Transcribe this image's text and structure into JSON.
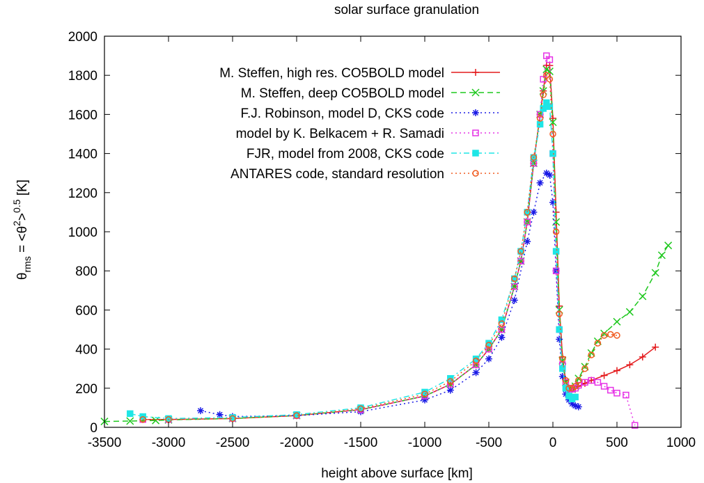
{
  "chart_data": {
    "type": "line",
    "title": "solar surface granulation",
    "xlabel": "height above surface [km]",
    "ylabel": {
      "prefix": "θ",
      "prefix_sub": "rms",
      "mid": " = <θ",
      "mid_sup": "2",
      "mid2": ">",
      "mid2_sup": "0.5",
      "suffix": " [K]"
    },
    "xlim": [
      -3500,
      1000
    ],
    "ylim": [
      0,
      2000
    ],
    "xticks": [
      "-3500",
      "-3000",
      "-2500",
      "-2000",
      "-1500",
      "-1000",
      "-500",
      "0",
      "500",
      "1000"
    ],
    "yticks": [
      "0",
      "200",
      "400",
      "600",
      "800",
      "1000",
      "1200",
      "1400",
      "1600",
      "1800",
      "2000"
    ],
    "grid": false,
    "legend_position": "top-right",
    "series": [
      {
        "name": "M. Steffen, high res. CO5BOLD model",
        "color": "#e41a1c",
        "dash": "solid",
        "marker": "plus",
        "x": [
          -3200,
          -3000,
          -2500,
          -2000,
          -1500,
          -1000,
          -800,
          -600,
          -500,
          -400,
          -300,
          -250,
          -200,
          -150,
          -100,
          -75,
          -50,
          -25,
          0,
          25,
          50,
          75,
          100,
          125,
          150,
          175,
          200,
          250,
          300,
          400,
          500,
          600,
          700,
          800
        ],
        "values": [
          40,
          40,
          45,
          60,
          90,
          160,
          220,
          320,
          400,
          500,
          720,
          850,
          1050,
          1350,
          1600,
          1720,
          1850,
          1850,
          1580,
          1100,
          620,
          360,
          240,
          200,
          195,
          200,
          210,
          225,
          240,
          265,
          290,
          320,
          360,
          410
        ]
      },
      {
        "name": "M. Steffen, deep CO5BOLD model",
        "color": "#1ec81e",
        "dash": "dashed",
        "marker": "cross",
        "x": [
          -3500,
          -3300,
          -3100,
          -3000,
          -2500,
          -2000,
          -1500,
          -1000,
          -800,
          -600,
          -500,
          -400,
          -300,
          -250,
          -200,
          -150,
          -100,
          -75,
          -50,
          -25,
          0,
          25,
          50,
          75,
          100,
          125,
          150,
          175,
          200,
          250,
          300,
          350,
          400,
          500,
          600,
          700,
          800,
          850,
          900
        ],
        "values": [
          30,
          32,
          35,
          38,
          45,
          60,
          90,
          160,
          220,
          320,
          400,
          500,
          720,
          850,
          1050,
          1350,
          1600,
          1720,
          1830,
          1820,
          1560,
          1050,
          600,
          340,
          230,
          200,
          195,
          210,
          250,
          310,
          380,
          440,
          480,
          540,
          590,
          670,
          790,
          880,
          930
        ]
      },
      {
        "name": "F.J. Robinson, model D, CKS code",
        "color": "#1a1ae6",
        "dash": "dotted",
        "marker": "star",
        "x": [
          -2750,
          -2600,
          -2500,
          -2000,
          -1500,
          -1000,
          -800,
          -600,
          -500,
          -400,
          -300,
          -200,
          -150,
          -100,
          -50,
          -25,
          0,
          25,
          50,
          75,
          100,
          125,
          150,
          175,
          200
        ],
        "values": [
          85,
          65,
          55,
          60,
          80,
          140,
          190,
          280,
          350,
          460,
          650,
          950,
          1100,
          1250,
          1300,
          1290,
          1150,
          800,
          450,
          260,
          170,
          140,
          120,
          110,
          105
        ]
      },
      {
        "name": "model by K. Belkacem + R. Samadi",
        "color": "#e633e6",
        "dash": "dotted",
        "marker": "square",
        "x": [
          -3200,
          -3000,
          -2500,
          -2000,
          -1500,
          -1000,
          -800,
          -600,
          -500,
          -400,
          -300,
          -250,
          -200,
          -150,
          -100,
          -75,
          -50,
          -25,
          0,
          25,
          50,
          75,
          100,
          125,
          150,
          175,
          200,
          250,
          300,
          350,
          400,
          450,
          500,
          570,
          640
        ],
        "values": [
          40,
          40,
          45,
          60,
          90,
          160,
          220,
          320,
          400,
          500,
          720,
          850,
          1050,
          1350,
          1600,
          1780,
          1900,
          1880,
          1400,
          800,
          500,
          320,
          230,
          200,
          195,
          200,
          215,
          230,
          240,
          230,
          210,
          190,
          175,
          165,
          10
        ]
      },
      {
        "name": "FJR, model from 2008, CKS code",
        "color": "#1ee6e6",
        "dash": "dashdot",
        "marker": "fsquare",
        "x": [
          -3300,
          -3200,
          -3000,
          -2500,
          -2000,
          -1500,
          -1000,
          -800,
          -600,
          -500,
          -400,
          -300,
          -250,
          -200,
          -150,
          -100,
          -75,
          -50,
          -25,
          0,
          25,
          50,
          75,
          100,
          125,
          150,
          175
        ],
        "values": [
          70,
          55,
          45,
          50,
          65,
          100,
          180,
          250,
          350,
          430,
          550,
          760,
          900,
          1100,
          1380,
          1550,
          1630,
          1660,
          1640,
          1400,
          900,
          500,
          300,
          200,
          160,
          145,
          155
        ]
      },
      {
        "name": "ANTARES code, standard resolution",
        "color": "#f05a1e",
        "dash": "dotted",
        "marker": "circle",
        "x": [
          -3200,
          -3000,
          -2500,
          -2000,
          -1500,
          -1000,
          -800,
          -600,
          -500,
          -400,
          -300,
          -250,
          -200,
          -150,
          -100,
          -75,
          -50,
          -25,
          0,
          25,
          50,
          75,
          100,
          125,
          150,
          175,
          200,
          250,
          300,
          350,
          400,
          450,
          500
        ],
        "values": [
          40,
          40,
          45,
          60,
          95,
          170,
          235,
          340,
          420,
          530,
          760,
          900,
          1100,
          1380,
          1580,
          1700,
          1800,
          1780,
          1500,
          1000,
          580,
          350,
          240,
          200,
          200,
          210,
          240,
          300,
          370,
          430,
          470,
          475,
          470
        ]
      }
    ]
  }
}
